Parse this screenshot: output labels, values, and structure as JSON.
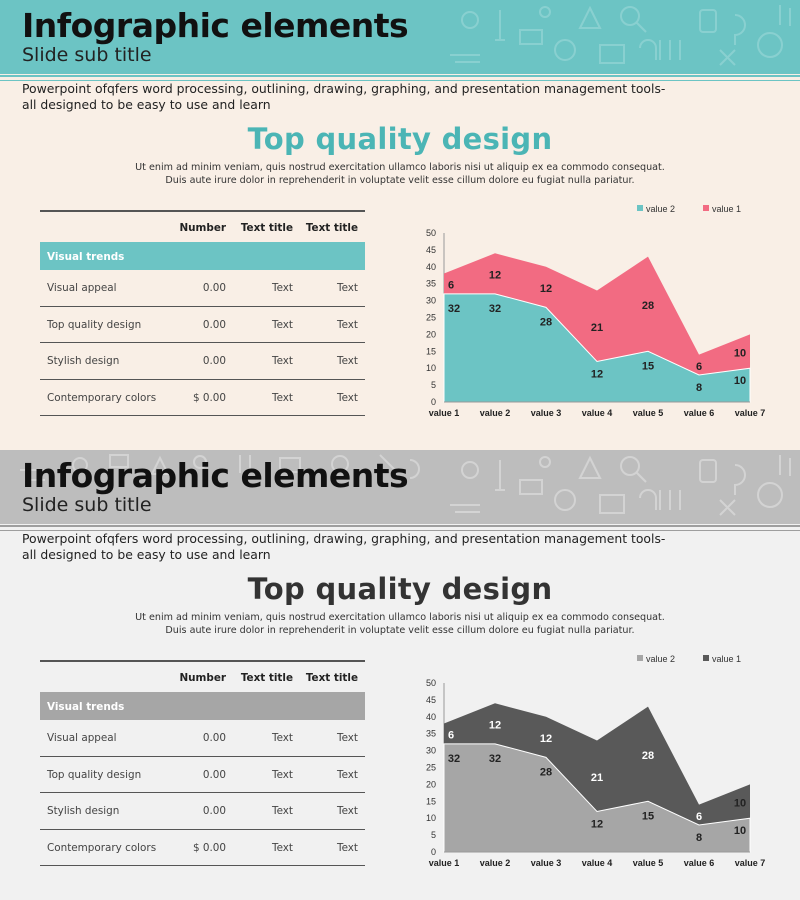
{
  "slides": [
    {
      "theme": "teal",
      "title": "Infographic elements",
      "subtitle": "Slide sub title",
      "intro": "Powerpoint ofqfers word processing, outlining, drawing, graphing, and presentation management tools- all designed to be easy to use and learn",
      "heading": "Top quality design",
      "lorem_line1": "Ut enim ad minim veniam, quis nostrud exercitation  ullamco laboris nisi ut aliquip ex ea commodo consequat.",
      "lorem_line2": "Duis aute irure dolor in reprehenderit  in voluptate  velit esse cillum dolore eu fugiat nulla pariatur.",
      "table": {
        "columns": [
          "Number",
          "Text title",
          "Text title"
        ],
        "band": "Visual trends",
        "rows": [
          [
            "Visual appeal",
            "0.00",
            "Text",
            "Text"
          ],
          [
            "Top quality design",
            "0.00",
            "Text",
            "Text"
          ],
          [
            "Stylish  design",
            "0.00",
            "Text",
            "Text"
          ],
          [
            "Contemporary colors",
            "$ 0.00",
            "Text",
            "Text"
          ]
        ]
      },
      "colors": {
        "banner": "#6cc4c4",
        "value2": "#6cc4c4",
        "value1": "#f26b82"
      }
    },
    {
      "theme": "gray",
      "title": "Infographic elements",
      "subtitle": "Slide sub title",
      "intro": "Powerpoint ofqfers word processing, outlining, drawing, graphing, and presentation management tools- all designed to be easy to use and learn",
      "heading": "Top quality design",
      "lorem_line1": "Ut enim ad minim veniam, quis nostrud exercitation  ullamco laboris nisi ut aliquip ex ea commodo consequat.",
      "lorem_line2": "Duis aute irure dolor in reprehenderit  in voluptate  velit esse cillum dolore eu fugiat nulla pariatur.",
      "table": {
        "columns": [
          "Number",
          "Text title",
          "Text title"
        ],
        "band": "Visual trends",
        "rows": [
          [
            "Visual appeal",
            "0.00",
            "Text",
            "Text"
          ],
          [
            "Top quality design",
            "0.00",
            "Text",
            "Text"
          ],
          [
            "Stylish  design",
            "0.00",
            "Text",
            "Text"
          ],
          [
            "Contemporary colors",
            "$ 0.00",
            "Text",
            "Text"
          ]
        ]
      },
      "colors": {
        "banner": "#bdbdbd",
        "value2": "#a6a6a6",
        "value1": "#595959"
      }
    }
  ],
  "chart_data": [
    {
      "type": "area",
      "stacked": true,
      "categories": [
        "value 1",
        "value 2",
        "value 3",
        "value 4",
        "value 5",
        "value 6",
        "value 7"
      ],
      "series": [
        {
          "name": "value 2",
          "values": [
            32,
            32,
            28,
            12,
            15,
            8,
            10
          ]
        },
        {
          "name": "value 1",
          "values": [
            6,
            12,
            12,
            21,
            28,
            6,
            10
          ]
        }
      ],
      "yticks": [
        "0",
        "5",
        "10",
        "15",
        "20",
        "25",
        "30",
        "35",
        "40",
        "45",
        "50"
      ],
      "ylim": [
        0,
        50
      ],
      "legend": "top-right"
    },
    {
      "type": "area",
      "stacked": true,
      "categories": [
        "value 1",
        "value 2",
        "value 3",
        "value 4",
        "value 5",
        "value 6",
        "value 7"
      ],
      "series": [
        {
          "name": "value 2",
          "values": [
            32,
            32,
            28,
            12,
            15,
            8,
            10
          ]
        },
        {
          "name": "value 1",
          "values": [
            6,
            12,
            12,
            21,
            28,
            6,
            10
          ]
        }
      ],
      "yticks": [
        "0",
        "5",
        "10",
        "15",
        "20",
        "25",
        "30",
        "35",
        "40",
        "45",
        "50"
      ],
      "ylim": [
        0,
        50
      ],
      "legend": "top-right"
    }
  ]
}
